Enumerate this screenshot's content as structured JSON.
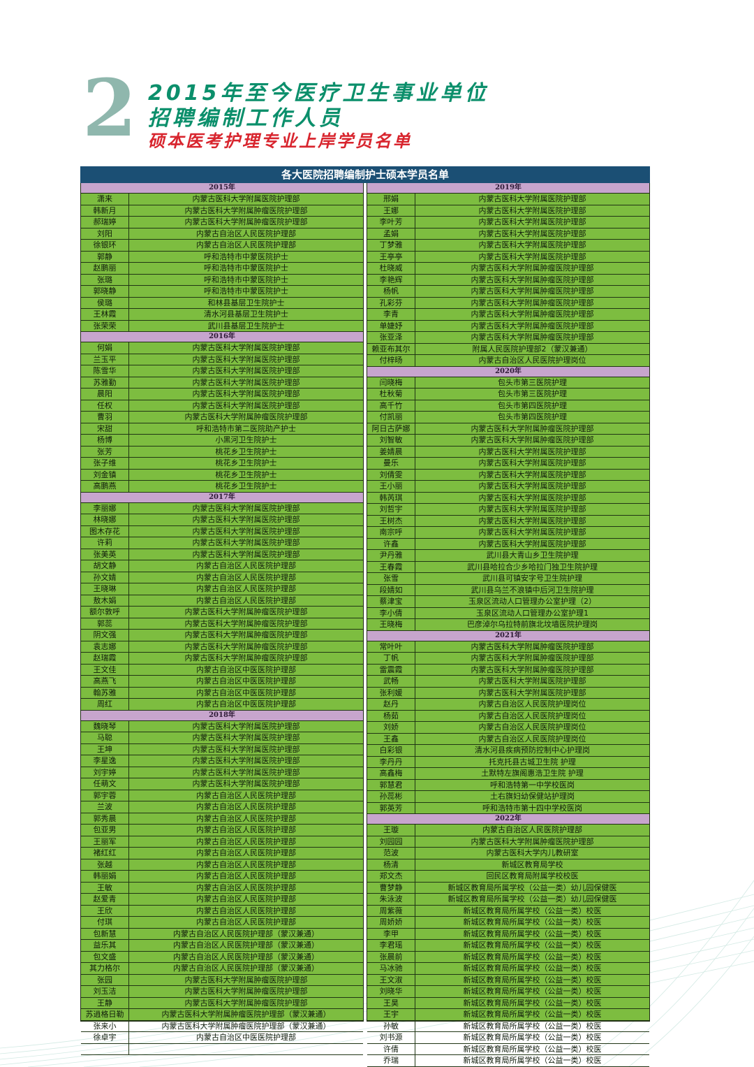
{
  "header": {
    "number": "2",
    "line1": "2015年至今医疗卫生事业单位",
    "line2": "招聘编制工作人员",
    "line3": "硕本医考护理专业上岸学员名单"
  },
  "table": {
    "title": "各大医院招聘编制护士硕本学员名单",
    "left_column": [
      {
        "year": "2015年",
        "rows": [
          [
            "潇来",
            "内蒙古医科大学附属医院护理部"
          ],
          [
            "韩新月",
            "内蒙古医科大学附属肿瘤医院护理部"
          ],
          [
            "郝瑞婷",
            "内蒙古医科大学附属肿瘤医院护理部"
          ],
          [
            "刘阳",
            "内蒙古自治区人民医院护理部"
          ],
          [
            "徐银环",
            "内蒙古自治区人民医院护理部"
          ],
          [
            "郭静",
            "呼和浩特市中蒙医院护士"
          ],
          [
            "赵鹏丽",
            "呼和浩特市中蒙医院护士"
          ],
          [
            "张璐",
            "呼和浩特市中蒙医院护士"
          ],
          [
            "郭晓静",
            "呼和浩特市中蒙医院护士"
          ],
          [
            "侯璐",
            "和林县基层卫生院护士"
          ],
          [
            "王林霞",
            "清水河县基层卫生院护士"
          ],
          [
            "张荣荣",
            "武川县基层卫生院护士"
          ]
        ]
      },
      {
        "year": "2016年",
        "rows": [
          [
            "何娟",
            "内蒙古医科大学附属医院护理部"
          ],
          [
            "兰玉平",
            "内蒙古医科大学附属医院护理部"
          ],
          [
            "陈雪华",
            "内蒙古医科大学附属医院护理部"
          ],
          [
            "苏雅勤",
            "内蒙古医科大学附属医院护理部"
          ],
          [
            "晨阳",
            "内蒙古医科大学附属医院护理部"
          ],
          [
            "任权",
            "内蒙古医科大学附属医院护理部"
          ],
          [
            "曹羽",
            "内蒙古医科大学附属肿瘤医院护理部"
          ],
          [
            "宋甜",
            "呼和浩特市第二医院助产护士"
          ],
          [
            "杨博",
            "小黑河卫生院护士"
          ],
          [
            "张芳",
            "桃花乡卫生院护士"
          ],
          [
            "张子维",
            "桃花乡卫生院护士"
          ],
          [
            "刘金镇",
            "桃花乡卫生院护士"
          ],
          [
            "高鹏燕",
            "桃花乡卫生院护士"
          ]
        ]
      },
      {
        "year": "2017年",
        "rows": [
          [
            "李丽娜",
            "内蒙古医科大学附属医院护理部"
          ],
          [
            "林晓娜",
            "内蒙古医科大学附属医院护理部"
          ],
          [
            "图木存花",
            "内蒙古医科大学附属医院护理部"
          ],
          [
            "许莉",
            "内蒙古医科大学附属医院护理部"
          ],
          [
            "张美英",
            "内蒙古医科大学附属医院护理部"
          ],
          [
            "胡文静",
            "内蒙古自治区人民医院护理部"
          ],
          [
            "孙文婧",
            "内蒙古自治区人民医院护理部"
          ],
          [
            "王晓琳",
            "内蒙古自治区人民医院护理部"
          ],
          [
            "敖木娟",
            "内蒙古自治区人民医院护理部"
          ],
          [
            "额尔敦呼",
            "内蒙古医科大学附属肿瘤医院护理部"
          ],
          [
            "郭蕊",
            "内蒙古医科大学附属肿瘤医院护理部"
          ],
          [
            "阴文强",
            "内蒙古医科大学附属肿瘤医院护理部"
          ],
          [
            "袁志娜",
            "内蒙古医科大学附属肿瘤医院护理部"
          ],
          [
            "赵瑞霞",
            "内蒙古医科大学附属肿瘤医院护理部"
          ],
          [
            "王文佳",
            "内蒙古自治区中医医院护理部"
          ],
          [
            "高燕飞",
            "内蒙古自治区中医医院护理部"
          ],
          [
            "翰苏雅",
            "内蒙古自治区中医医院护理部"
          ],
          [
            "周红",
            "内蒙古自治区中医医院护理部"
          ]
        ]
      },
      {
        "year": "2018年",
        "rows": [
          [
            "魏晓琴",
            "内蒙古医科大学附属医院护理部"
          ],
          [
            "马聪",
            "内蒙古医科大学附属医院护理部"
          ],
          [
            "王坤",
            "内蒙古医科大学附属医院护理部"
          ],
          [
            "李星逸",
            "内蒙古医科大学附属医院护理部"
          ],
          [
            "刘宇婷",
            "内蒙古医科大学附属医院护理部"
          ],
          [
            "任萌文",
            "内蒙古医科大学附属医院护理部"
          ],
          [
            "郭宇蓉",
            "内蒙古自治区人民医院护理部"
          ],
          [
            "兰波",
            "内蒙古自治区人民医院护理部"
          ],
          [
            "郭秀晨",
            "内蒙古自治区人民医院护理部"
          ],
          [
            "包亚男",
            "内蒙古自治区人民医院护理部"
          ],
          [
            "王丽军",
            "内蒙古自治区人民医院护理部"
          ],
          [
            "褚红红",
            "内蒙古自治区人民医院护理部"
          ],
          [
            "张越",
            "内蒙古自治区人民医院护理部"
          ],
          [
            "韩丽娟",
            "内蒙古自治区人民医院护理部"
          ],
          [
            "王敏",
            "内蒙古自治区人民医院护理部"
          ],
          [
            "赵爱青",
            "内蒙古自治区人民医院护理部"
          ],
          [
            "王欣",
            "内蒙古自治区人民医院护理部"
          ],
          [
            "付琪",
            "内蒙古自治区人民医院护理部"
          ],
          [
            "包新慧",
            "内蒙古自治区人民医院护理部（蒙汉兼通）"
          ],
          [
            "益乐其",
            "内蒙古自治区人民医院护理部（蒙汉兼通）"
          ],
          [
            "包文盛",
            "内蒙古自治区人民医院护理部（蒙汉兼通）"
          ],
          [
            "其力格尔",
            "内蒙古自治区人民医院护理部（蒙汉兼通）"
          ],
          [
            "张园",
            "内蒙古医科大学附属肿瘤医院护理部"
          ],
          [
            "刘玉洁",
            "内蒙古医科大学附属肿瘤医院护理部"
          ],
          [
            "王静",
            "内蒙古医科大学附属肿瘤医院护理部"
          ],
          [
            "苏逍格日勒",
            "内蒙古医科大学附属肿瘤医院护理部（蒙汉兼通）"
          ],
          [
            "张来小",
            "内蒙古医科大学附属肿瘤医院护理部（蒙汉兼通）"
          ],
          [
            "徐卓宇",
            "内蒙古自治区中医医院护理部"
          ],
          [
            "",
            ""
          ]
        ]
      }
    ],
    "right_column": [
      {
        "year": "2019年",
        "rows": [
          [
            "邢娟",
            "内蒙古医科大学附属医院护理部"
          ],
          [
            "王娜",
            "内蒙古医科大学附属医院护理部"
          ],
          [
            "李叶芳",
            "内蒙古医科大学附属医院护理部"
          ],
          [
            "孟娟",
            "内蒙古医科大学附属医院护理部"
          ],
          [
            "丁梦雅",
            "内蒙古医科大学附属医院护理部"
          ],
          [
            "王亭亭",
            "内蒙古医科大学附属医院护理部"
          ],
          [
            "杜晓威",
            "内蒙古医科大学附属肿瘤医院护理部"
          ],
          [
            "李艳辉",
            "内蒙古医科大学附属肿瘤医院护理部"
          ],
          [
            "杨帆",
            "内蒙古医科大学附属肿瘤医院护理部"
          ],
          [
            "孔彩芬",
            "内蒙古医科大学附属肿瘤医院护理部"
          ],
          [
            "李青",
            "内蒙古医科大学附属肿瘤医院护理部"
          ],
          [
            "单婕妤",
            "内蒙古医科大学附属肿瘤医院护理部"
          ],
          [
            "张亚泽",
            "内蒙古医科大学附属肿瘤医院护理部"
          ],
          [
            "赖亚布其尔",
            "附属人民医院护理部2（蒙汉兼通）"
          ],
          [
            "付梓旸",
            "内蒙古自治区人民医院护理岗位"
          ]
        ]
      },
      {
        "year": "2020年",
        "rows": [
          [
            "闫晓梅",
            "包头市第三医院护理"
          ],
          [
            "杜秋菊",
            "包头市第三医院护理"
          ],
          [
            "高千竹",
            "包头市第四医院护理"
          ],
          [
            "付凯丽",
            "包头市第四医院护理"
          ],
          [
            "阿日古萨娜",
            "内蒙古医科大学附属肿瘤医院护理部"
          ],
          [
            "刘智敏",
            "内蒙古医科大学附属肿瘤医院护理部"
          ],
          [
            "姜婧晨",
            "内蒙古医科大学附属医院护理部"
          ],
          [
            "曼乐",
            "内蒙古医科大学附属医院护理部"
          ],
          [
            "刘倩雯",
            "内蒙古医科大学附属医院护理部"
          ],
          [
            "王小丽",
            "内蒙古医科大学附属医院护理部"
          ],
          [
            "韩芮琪",
            "内蒙古医科大学附属医院护理部"
          ],
          [
            "刘哲宇",
            "内蒙古医科大学附属医院护理部"
          ],
          [
            "王树杰",
            "内蒙古医科大学附属医院护理部"
          ],
          [
            "南宗呼",
            "内蒙古医科大学附属医院护理部"
          ],
          [
            "许鑫",
            "内蒙古医科大学附属医院护理部"
          ],
          [
            "尹丹雅",
            "武川县大青山乡卫生院护理"
          ],
          [
            "王春霞",
            "武川县哈拉合少乡哈拉门独卫生院护理"
          ],
          [
            "张雪",
            "武川县可镇安字号卫生院护理"
          ],
          [
            "段婧如",
            "武川县乌兰不浪镇中后河卫生院护理"
          ],
          [
            "蔡津宝",
            "玉泉区流动人口管理办公室护理（2）"
          ],
          [
            "李小倩",
            "玉泉区流动人口管理办公室护理1"
          ],
          [
            "王晓梅",
            "巴彦淖尔乌拉特前旗北坟墙医院护理岗"
          ]
        ]
      },
      {
        "year": "2021年",
        "rows": [
          [
            "常叶叶",
            "内蒙古医科大学附属肿瘤医院护理部"
          ],
          [
            "丁帆",
            "内蒙古医科大学附属肿瘤医院护理部"
          ],
          [
            "雷震霞",
            "内蒙古医科大学附属肿瘤医院护理部"
          ],
          [
            "武畅",
            "内蒙古医科大学附属医院护理部"
          ],
          [
            "张利媛",
            "内蒙古医科大学附属医院护理部"
          ],
          [
            "赵丹",
            "内蒙古自治区人民医院护理岗位"
          ],
          [
            "杨茹",
            "内蒙古自治区人民医院护理岗位"
          ],
          [
            "刘娇",
            "内蒙古自治区人民医院护理岗位"
          ],
          [
            "王鑫",
            "内蒙古自治区人民医院护理岗位"
          ],
          [
            "白彩银",
            "清水河县疾病预防控制中心护理岗"
          ],
          [
            "李丹丹",
            "托克托县古城卫生院 护理"
          ],
          [
            "高鑫梅",
            "土默特左旗阁惠浩卫生院 护理"
          ],
          [
            "郭慧君",
            "呼和浩特第一中学校医岗"
          ],
          [
            "孙蕊彬",
            "土右旗妇幼保健站护理岗"
          ],
          [
            "郭英芳",
            "呼和浩特市第十四中学校医岗"
          ]
        ]
      },
      {
        "year": "2022年",
        "rows": [
          [
            "王璇",
            "内蒙古自治区人民医院护理部"
          ],
          [
            "刘园园",
            "内蒙古医科大学附属肿瘤医院护理部"
          ],
          [
            "范波",
            "内蒙古医科大学内儿教研室"
          ],
          [
            "杨清",
            "新城区教育局学校"
          ],
          [
            "郑文杰",
            "回民区教育局附属学校校医"
          ],
          [
            "曹梦静",
            "新城区教育局所属学校（公益一类）幼儿园保健医"
          ],
          [
            "朱泳波",
            "新城区教育局所属学校（公益一类）幼儿园保健医"
          ],
          [
            "周紫薇",
            "新城区教育局所属学校（公益一类）校医"
          ],
          [
            "周娇娇",
            "新城区教育局所属学校（公益一类）校医"
          ],
          [
            "李甲",
            "新城区教育局所属学校（公益一类）校医"
          ],
          [
            "李君瑶",
            "新城区教育局所属学校（公益一类）校医"
          ],
          [
            "张晨前",
            "新城区教育局所属学校（公益一类）校医"
          ],
          [
            "马冰驰",
            "新城区教育局所属学校（公益一类）校医"
          ],
          [
            "王文淑",
            "新城区教育局所属学校（公益一类）校医"
          ],
          [
            "刘晓华",
            "新城区教育局所属学校（公益一类）校医"
          ],
          [
            "王昊",
            "新城区教育局所属学校（公益一类）校医"
          ],
          [
            "王宇",
            "新城区教育局所属学校（公益一类）校医"
          ],
          [
            "孙敏",
            "新城区教育局所属学校（公益一类）校医"
          ],
          [
            "刘书源",
            "新城区教育局所属学校（公益一类）校医"
          ],
          [
            "许倩",
            "新城区教育局所属学校（公益一类）校医"
          ],
          [
            "乔瑞",
            "新城区教育局所属学校（公益一类）校医"
          ]
        ]
      }
    ]
  }
}
